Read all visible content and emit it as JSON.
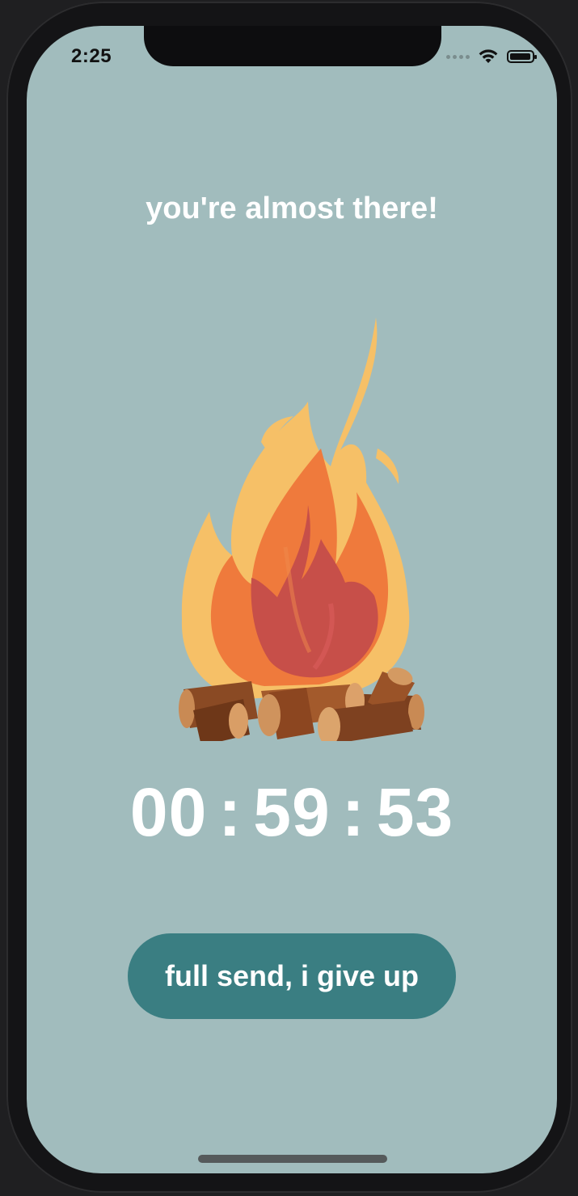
{
  "status_bar": {
    "time": "2:25",
    "battery_level": 0.95
  },
  "headline": "you're almost there!",
  "timer": {
    "hours": "00",
    "minutes": "59",
    "seconds": "53",
    "separator": ":"
  },
  "give_up_button": {
    "label": "full send, i give up"
  },
  "icons": {
    "campfire": "campfire-icon",
    "wifi": "wifi-icon",
    "battery": "battery-icon",
    "signal": "cellular-signal-icon"
  },
  "colors": {
    "background": "#a1bcbd",
    "button": "#3a7e82",
    "text": "#ffffff"
  }
}
